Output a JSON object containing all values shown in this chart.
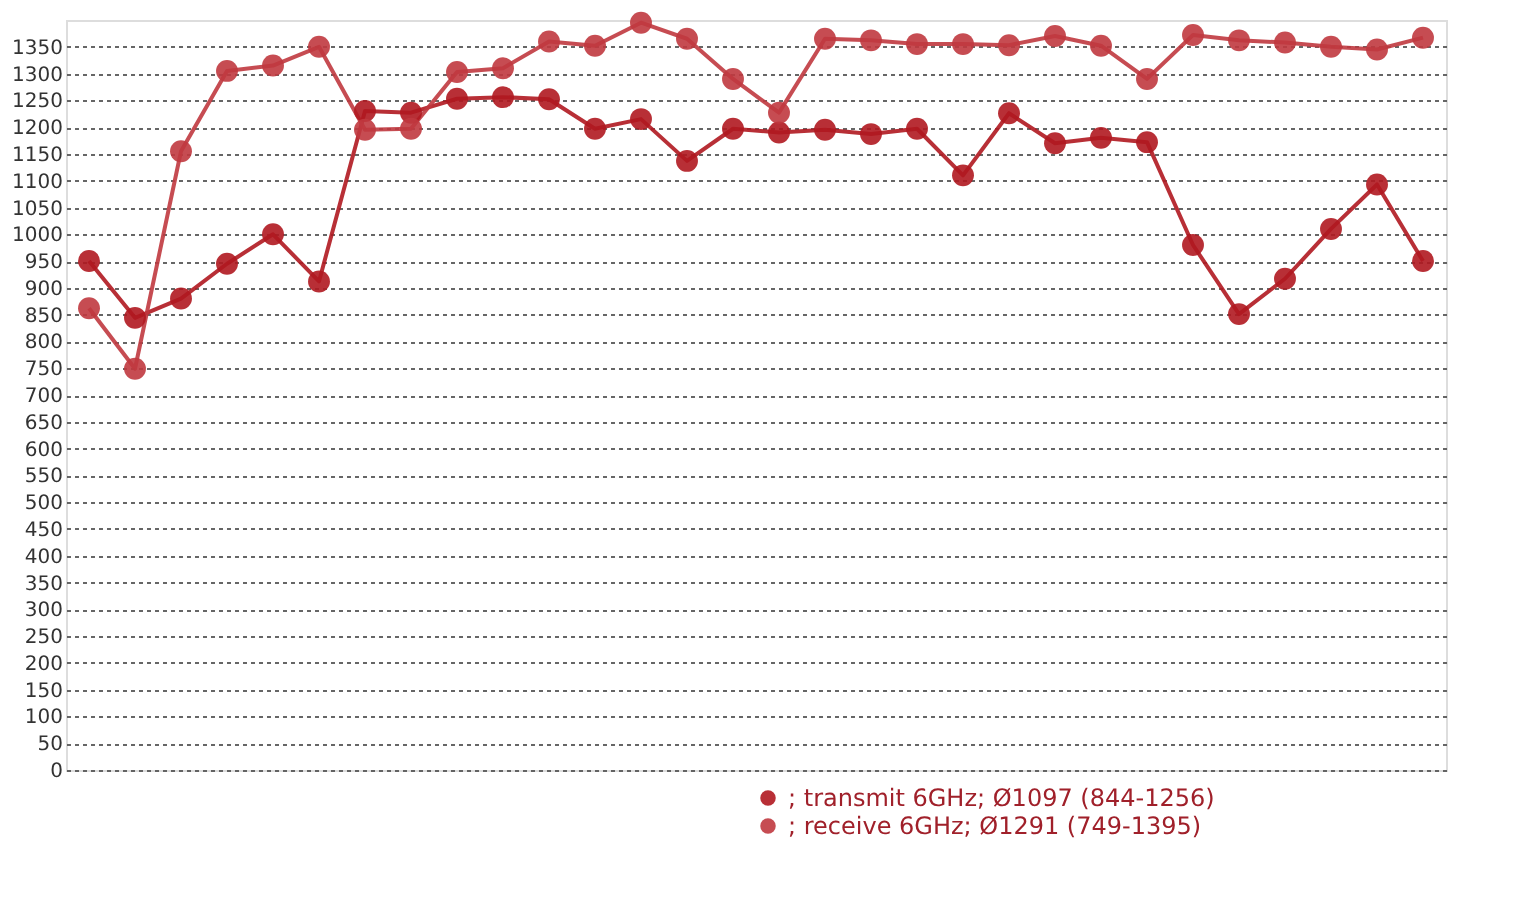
{
  "chart_data": {
    "type": "line",
    "categories": [
      null,
      null,
      null,
      null,
      null,
      null,
      null,
      null,
      null,
      null,
      null,
      null,
      null,
      null,
      null,
      null,
      null,
      null,
      null,
      null,
      null,
      null,
      null,
      null,
      null,
      null,
      null,
      null,
      null,
      null
    ],
    "series": [
      {
        "name": "; transmit 6GHz; Ø1097 (844-1256)",
        "color": "#b01820",
        "values": [
          950,
          844,
          880,
          945,
          1000,
          912,
          1230,
          1227,
          1253,
          1256,
          1252,
          1197,
          1215,
          1137,
          1197,
          1190,
          1195,
          1187,
          1197,
          1110,
          1226,
          1170,
          1180,
          1172,
          980,
          851,
          917,
          1010,
          1093,
          950
        ]
      },
      {
        "name": "; receive 6GHz; Ø1291 (749-1395)",
        "color": "#c0393f",
        "values": [
          862,
          749,
          1155,
          1305,
          1315,
          1350,
          1195,
          1197,
          1303,
          1310,
          1360,
          1352,
          1395,
          1365,
          1290,
          1227,
          1365,
          1362,
          1355,
          1355,
          1353,
          1370,
          1352,
          1290,
          1372,
          1362,
          1358,
          1350,
          1345,
          1367
        ]
      }
    ],
    "ylim": [
      0,
      1400
    ],
    "yticks": [
      0,
      50,
      100,
      150,
      200,
      250,
      300,
      350,
      400,
      450,
      500,
      550,
      600,
      650,
      700,
      750,
      800,
      850,
      900,
      950,
      1000,
      1050,
      1100,
      1150,
      1200,
      1250,
      1300,
      1350
    ],
    "grid": "y",
    "legend": "bottom right",
    "marker": "circle",
    "line_style": "solid",
    "tick_labels": "y"
  }
}
